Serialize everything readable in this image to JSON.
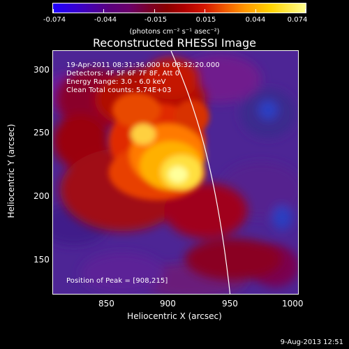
{
  "colorbar": {
    "labels": [
      "-0.074",
      "-0.044",
      "-0.015",
      "0.015",
      "0.044",
      "0.074"
    ],
    "units": "(photons cm⁻² s⁻¹ asec⁻²)",
    "gradient": [
      "#2000ff",
      "#5a007f",
      "#8a0000",
      "#d41800",
      "#ff9800",
      "#ffff90"
    ]
  },
  "title": "Reconstructed RHESSI Image",
  "overlay": {
    "line1": "19-Apr-2011 08:31:36.000 to 08:32:20.000",
    "line2": "Detectors: 4F 5F 6F 7F 8F, Att 0",
    "line3": "Energy Range: 3.0 - 6.0 keV",
    "line4": "Clean     Total counts: 5.74E+03",
    "peak": "Position of Peak = [908,215]"
  },
  "axes": {
    "x_title": "Heliocentric X (arcsec)",
    "y_title": "Heliocentric Y (arcsec)",
    "x_ticks": [
      "850",
      "900",
      "950",
      "1000"
    ],
    "y_ticks": [
      "300",
      "250",
      "200",
      "150"
    ]
  },
  "footer": {
    "timestamp": "9-Aug-2013 12:51"
  }
}
